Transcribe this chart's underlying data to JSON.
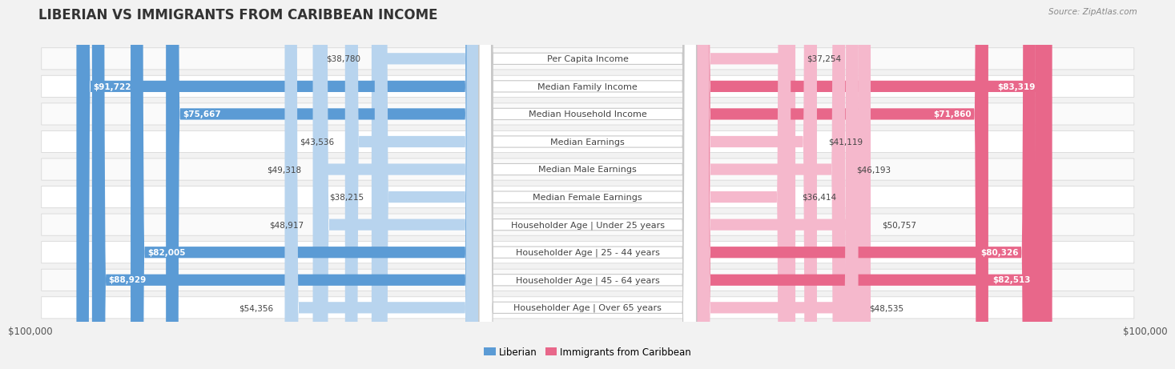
{
  "title": "LIBERIAN VS IMMIGRANTS FROM CARIBBEAN INCOME",
  "source": "Source: ZipAtlas.com",
  "categories": [
    "Per Capita Income",
    "Median Family Income",
    "Median Household Income",
    "Median Earnings",
    "Median Male Earnings",
    "Median Female Earnings",
    "Householder Age | Under 25 years",
    "Householder Age | 25 - 44 years",
    "Householder Age | 45 - 64 years",
    "Householder Age | Over 65 years"
  ],
  "liberian_values": [
    38780,
    91722,
    75667,
    43536,
    49318,
    38215,
    48917,
    82005,
    88929,
    54356
  ],
  "caribbean_values": [
    37254,
    83319,
    71860,
    41119,
    46193,
    36414,
    50757,
    80326,
    82513,
    48535
  ],
  "max_value": 100000,
  "liberian_color_strong": "#5b9bd5",
  "liberian_color_light": "#b8d4ee",
  "caribbean_color_strong": "#e8678a",
  "caribbean_color_light": "#f5b8cc",
  "background_color": "#f2f2f2",
  "row_bg_even": "#fafafa",
  "row_bg_odd": "#ffffff",
  "row_border": "#d8d8d8",
  "label_box_color": "#ffffff",
  "label_box_border": "#c8c8c8",
  "text_color_dark": "#444444",
  "text_color_white": "#ffffff",
  "axis_label_left": "$100,000",
  "axis_label_right": "$100,000",
  "legend_liberian": "Liberian",
  "legend_caribbean": "Immigrants from Caribbean",
  "title_fontsize": 12,
  "label_fontsize": 8.0,
  "value_fontsize": 7.5,
  "strong_threshold": 60000,
  "inside_threshold": 12000
}
